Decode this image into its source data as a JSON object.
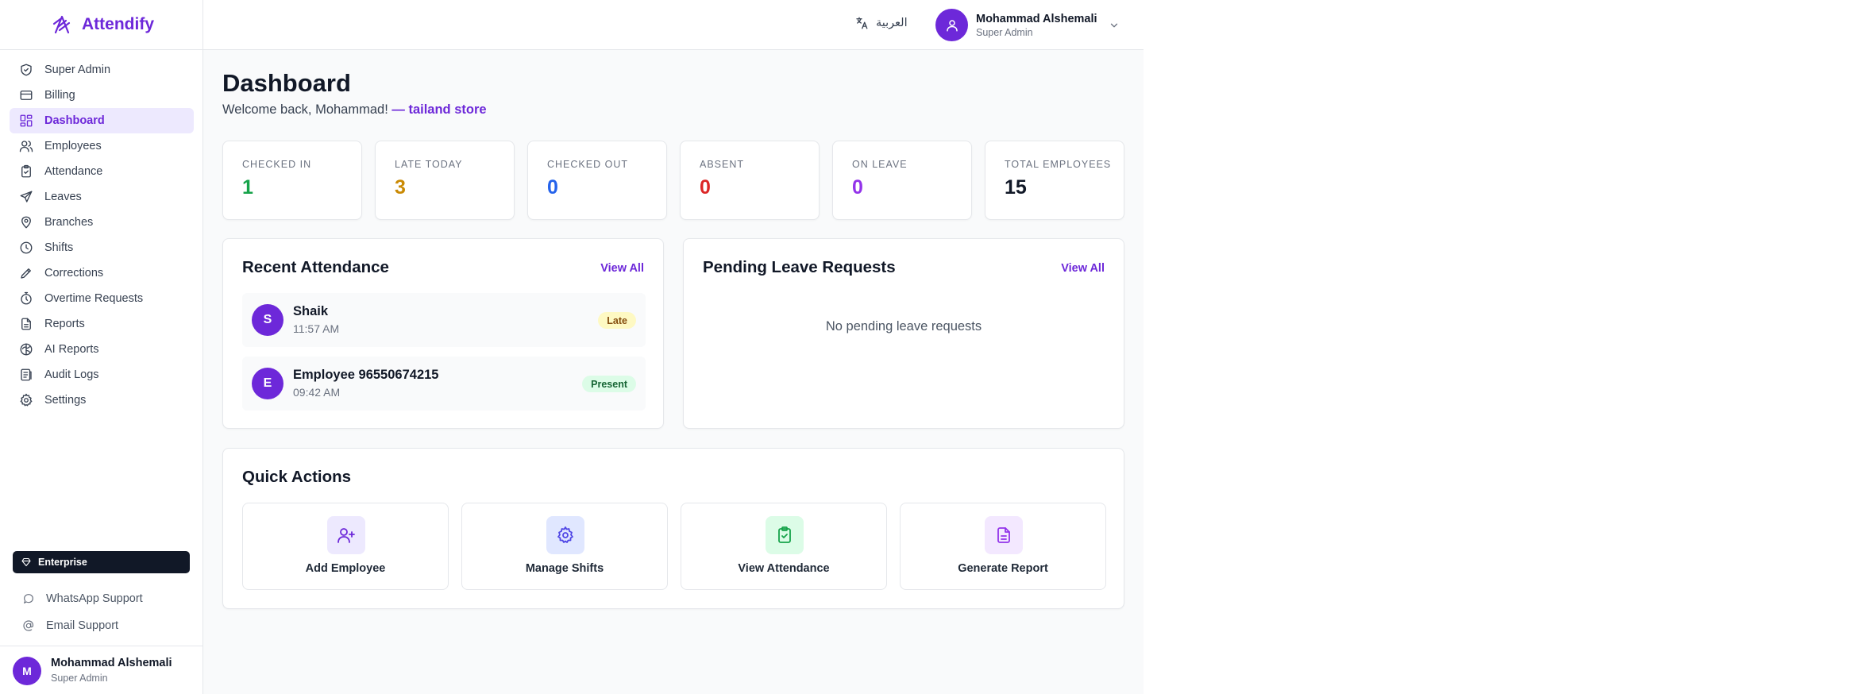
{
  "app": {
    "name": "Attendify"
  },
  "sidebar": {
    "items": [
      {
        "label": "Super Admin",
        "icon": "shield-icon",
        "active": false
      },
      {
        "label": "Billing",
        "icon": "credit-card-icon",
        "active": false
      },
      {
        "label": "Dashboard",
        "icon": "grid-icon",
        "active": true
      },
      {
        "label": "Employees",
        "icon": "users-icon",
        "active": false
      },
      {
        "label": "Attendance",
        "icon": "clipboard-check-icon",
        "active": false
      },
      {
        "label": "Leaves",
        "icon": "plane-icon",
        "active": false
      },
      {
        "label": "Branches",
        "icon": "map-pin-icon",
        "active": false
      },
      {
        "label": "Shifts",
        "icon": "clock-icon",
        "active": false
      },
      {
        "label": "Corrections",
        "icon": "pencil-icon",
        "active": false
      },
      {
        "label": "Overtime Requests",
        "icon": "timer-icon",
        "active": false
      },
      {
        "label": "Reports",
        "icon": "file-text-icon",
        "active": false
      },
      {
        "label": "AI Reports",
        "icon": "brain-icon",
        "active": false
      },
      {
        "label": "Audit Logs",
        "icon": "logs-icon",
        "active": false
      },
      {
        "label": "Settings",
        "icon": "gear-icon",
        "active": false
      }
    ],
    "plan": "Enterprise",
    "support": {
      "whatsapp": "WhatsApp Support",
      "email": "Email Support"
    },
    "user": {
      "initial": "M",
      "name": "Mohammad Alshemali",
      "role": "Super Admin"
    }
  },
  "header": {
    "language": "العربية",
    "user": {
      "name": "Mohammad Alshemali",
      "role": "Super Admin"
    }
  },
  "main": {
    "title": "Dashboard",
    "welcome": "Welcome back, Mohammad!",
    "store": "— tailand store",
    "stats": [
      {
        "label": "CHECKED IN",
        "value": "1",
        "color": "#16a34a"
      },
      {
        "label": "LATE TODAY",
        "value": "3",
        "color": "#ca8a04"
      },
      {
        "label": "CHECKED OUT",
        "value": "0",
        "color": "#2563eb"
      },
      {
        "label": "ABSENT",
        "value": "0",
        "color": "#dc2626"
      },
      {
        "label": "ON LEAVE",
        "value": "0",
        "color": "#9333ea"
      },
      {
        "label": "TOTAL EMPLOYEES",
        "value": "15",
        "color": "#111827"
      }
    ],
    "recent_attendance": {
      "title": "Recent Attendance",
      "view_all": "View All",
      "rows": [
        {
          "initial": "S",
          "name": "Shaik",
          "time": "11:57 AM",
          "status": "Late"
        },
        {
          "initial": "E",
          "name": "Employee 96550674215",
          "time": "09:42 AM",
          "status": "Present"
        }
      ]
    },
    "pending_leaves": {
      "title": "Pending Leave Requests",
      "view_all": "View All",
      "empty": "No pending leave requests"
    },
    "quick_actions": {
      "title": "Quick Actions",
      "items": [
        {
          "label": "Add Employee",
          "icon": "user-plus-icon",
          "bg": "#ede9fe",
          "color": "#6d28d9"
        },
        {
          "label": "Manage Shifts",
          "icon": "gear-icon",
          "bg": "#e0e7ff",
          "color": "#4f46e5"
        },
        {
          "label": "View Attendance",
          "icon": "clipboard-check-icon",
          "bg": "#dcfce7",
          "color": "#16a34a"
        },
        {
          "label": "Generate Report",
          "icon": "file-text-icon",
          "bg": "#f3e8ff",
          "color": "#9333ea"
        }
      ]
    }
  },
  "colors": {
    "accent": "#6d28d9",
    "active_bg": "#ede9fe"
  }
}
